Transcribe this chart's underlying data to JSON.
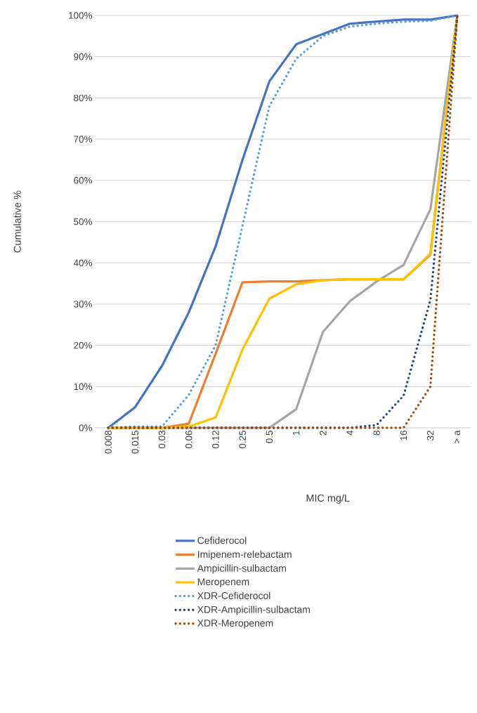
{
  "chart_data": {
    "type": "line",
    "xlabel": "MIC mg/L",
    "ylabel": "Cumulative %",
    "categories": [
      "0.008",
      "0.015",
      "0.03",
      "0.06",
      "0.12",
      "0.25",
      "0.5",
      "1",
      "2",
      "4",
      "8",
      "16",
      "32",
      "> a"
    ],
    "ylim": [
      0,
      100
    ],
    "yticks": [
      {
        "value": 0,
        "label": "0%"
      },
      {
        "value": 10,
        "label": "10%"
      },
      {
        "value": 20,
        "label": "20%"
      },
      {
        "value": 30,
        "label": "30%"
      },
      {
        "value": 40,
        "label": "40%"
      },
      {
        "value": 50,
        "label": "50%"
      },
      {
        "value": 60,
        "label": "60%"
      },
      {
        "value": 70,
        "label": "70%"
      },
      {
        "value": 80,
        "label": "80%"
      },
      {
        "value": 90,
        "label": "90%"
      },
      {
        "value": 100,
        "label": "100%"
      }
    ],
    "grid": "y",
    "legend": "bottom",
    "marker": "none",
    "series": [
      {
        "name": "Cefiderocol",
        "color": "#4472c4",
        "line_style": "solid",
        "values": [
          0,
          5,
          15,
          28,
          44,
          65,
          84,
          93,
          95.5,
          98,
          98.5,
          99,
          99,
          100
        ]
      },
      {
        "name": "Imipenem-relebactam",
        "color": "#ed7d31",
        "line_style": "solid",
        "values": [
          0,
          0,
          0,
          1,
          18,
          35.3,
          35.5,
          35.5,
          35.8,
          36,
          36,
          36,
          42,
          100
        ]
      },
      {
        "name": "Ampicillin-sulbactam",
        "color": "#a5a5a5",
        "line_style": "solid",
        "values": [
          0,
          0,
          0,
          0,
          0,
          0,
          0,
          4.5,
          23.3,
          30.7,
          35.5,
          39.5,
          53,
          100
        ]
      },
      {
        "name": "Meropenem",
        "color": "#ffc000",
        "line_style": "solid",
        "values": [
          0,
          0,
          0,
          0.3,
          2.5,
          19,
          31.3,
          34.8,
          35.8,
          36,
          36,
          36,
          42.2,
          100
        ]
      },
      {
        "name": "XDR-Cefiderocol",
        "color": "#5b9bd5",
        "line_style": "dotted",
        "values": [
          0,
          0.3,
          0.3,
          8,
          20,
          49,
          78,
          89.5,
          95,
          97.3,
          98,
          98.5,
          98.7,
          100
        ]
      },
      {
        "name": "XDR-Ampicillin-sulbactam",
        "color": "#264478",
        "line_style": "dotted",
        "values": [
          0,
          0,
          0,
          0,
          0,
          0,
          0,
          0,
          0,
          0,
          0.7,
          7.8,
          31,
          100
        ]
      },
      {
        "name": "XDR-Meropenem",
        "color": "#9e480e",
        "line_style": "dotted",
        "values": [
          0,
          0,
          0,
          0,
          0,
          0,
          0,
          0,
          0,
          0,
          0,
          0,
          10,
          100
        ]
      }
    ]
  }
}
